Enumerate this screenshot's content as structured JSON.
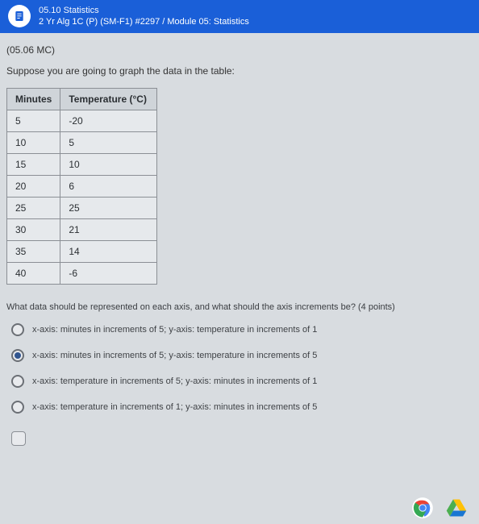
{
  "header": {
    "line1": "05.10 Statistics",
    "line2": "2 Yr Alg 1C (P) (SM-F1) #2297 / Module 05: Statistics"
  },
  "question_id": "(05.06 MC)",
  "prompt": "Suppose you are going to graph the data in the table:",
  "table": {
    "columns": [
      "Minutes",
      "Temperature (°C)"
    ],
    "rows": [
      [
        "5",
        "-20"
      ],
      [
        "10",
        "5"
      ],
      [
        "15",
        "10"
      ],
      [
        "20",
        "6"
      ],
      [
        "25",
        "25"
      ],
      [
        "30",
        "21"
      ],
      [
        "35",
        "14"
      ],
      [
        "40",
        "-6"
      ]
    ]
  },
  "question_text": "What data should be represented on each axis, and what should the axis increments be? (4 points)",
  "options": [
    "x-axis: minutes in increments of 5; y-axis: temperature in increments of 1",
    "x-axis: minutes in increments of 5; y-axis: temperature in increments of 5",
    "x-axis: temperature in increments of 5; y-axis: minutes in increments of 1",
    "x-axis: temperature in increments of 1; y-axis: minutes in increments of 5"
  ],
  "selected_index": 1
}
